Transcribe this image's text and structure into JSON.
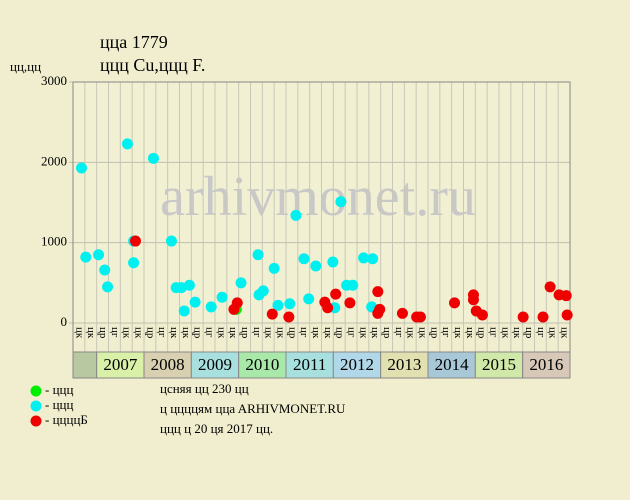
{
  "chart_data": {
    "type": "scatter",
    "title": "ццa 1779",
    "subtitle": "ццц Cu,ццц F.",
    "y_label": "цц,цц",
    "watermark": "arhivmonet.ru",
    "xlim": [
      2006.5,
      2017
    ],
    "ylim": [
      0,
      3000
    ],
    "yticks": [
      0,
      1000,
      2000,
      3000
    ],
    "grid": true,
    "quarter_labels": [
      "цк",
      "цк",
      "цр",
      "цг",
      "цк",
      "цк",
      "цр",
      "цг",
      "цк",
      "цк",
      "цр",
      "цг",
      "цк",
      "цк",
      "цр",
      "цг",
      "цк",
      "цк",
      "цр",
      "цг",
      "цк",
      "цк",
      "цр",
      "цг",
      "цк",
      "цк",
      "цр",
      "цг",
      "цк",
      "цк",
      "цр",
      "цг",
      "цк",
      "цк",
      "цр",
      "цг",
      "цк",
      "цк",
      "цр",
      "цг",
      "цк",
      "цк"
    ],
    "years": [
      2007,
      2008,
      2009,
      2010,
      2011,
      2012,
      2013,
      2014,
      2015,
      2016
    ],
    "year_colors": [
      "#d8f0a8",
      "#d8d0b0",
      "#a8e0e0",
      "#a8e8a8",
      "#a8e0e0",
      "#b0d8e8",
      "#e0e0b0",
      "#a8c8d8",
      "#d0e8a8",
      "#d8c8b8"
    ],
    "series": [
      {
        "name": "- ццц",
        "color": "#00ee00",
        "x": [
          2009.95
        ],
        "values": [
          170
        ]
      },
      {
        "name": "- ццц",
        "color": "#00f0f0",
        "x": [
          2006.68,
          2006.77,
          2007.04,
          2007.17,
          2007.23,
          2007.65,
          2007.78,
          2007.78,
          2008.2,
          2008.58,
          2008.68,
          2008.79,
          2008.85,
          2008.96,
          2009.08,
          2009.42,
          2009.65,
          2010.05,
          2010.41,
          2010.43,
          2010.52,
          2010.75,
          2010.83,
          2011.08,
          2011.21,
          2011.38,
          2011.48,
          2011.63,
          2011.99,
          2012.03,
          2012.16,
          2012.28,
          2012.41,
          2012.64,
          2012.83,
          2012.81
        ],
        "values": [
          1930,
          820,
          850,
          660,
          450,
          2230,
          1020,
          750,
          2050,
          1020,
          440,
          440,
          150,
          470,
          260,
          200,
          320,
          500,
          850,
          350,
          400,
          680,
          220,
          240,
          1340,
          800,
          300,
          710,
          760,
          190,
          1510,
          470,
          470,
          810,
          800,
          200
        ]
      },
      {
        "name": "- ццццБ",
        "color": "#ee0000",
        "x": [
          2007.82,
          2009.9,
          2009.97,
          2010.71,
          2011.06,
          2011.82,
          2011.88,
          2012.05,
          2012.35,
          2012.94,
          2012.98,
          2012.94,
          2013.46,
          2013.76,
          2013.84,
          2014.56,
          2014.96,
          2014.96,
          2015.02,
          2015.15,
          2016.01,
          2016.43,
          2016.58,
          2016.77,
          2016.92,
          2016.94
        ],
        "values": [
          1020,
          170,
          250,
          110,
          75,
          260,
          190,
          360,
          250,
          390,
          170,
          120,
          120,
          75,
          75,
          250,
          350,
          290,
          150,
          100,
          75,
          75,
          450,
          350,
          340,
          100
        ]
      }
    ],
    "annotations": [
      "цcняя цц 230 цц",
      "ц ццццям ццa ARHIVMONET.RU",
      "ццц ц 20 ця 2017 цц."
    ]
  }
}
